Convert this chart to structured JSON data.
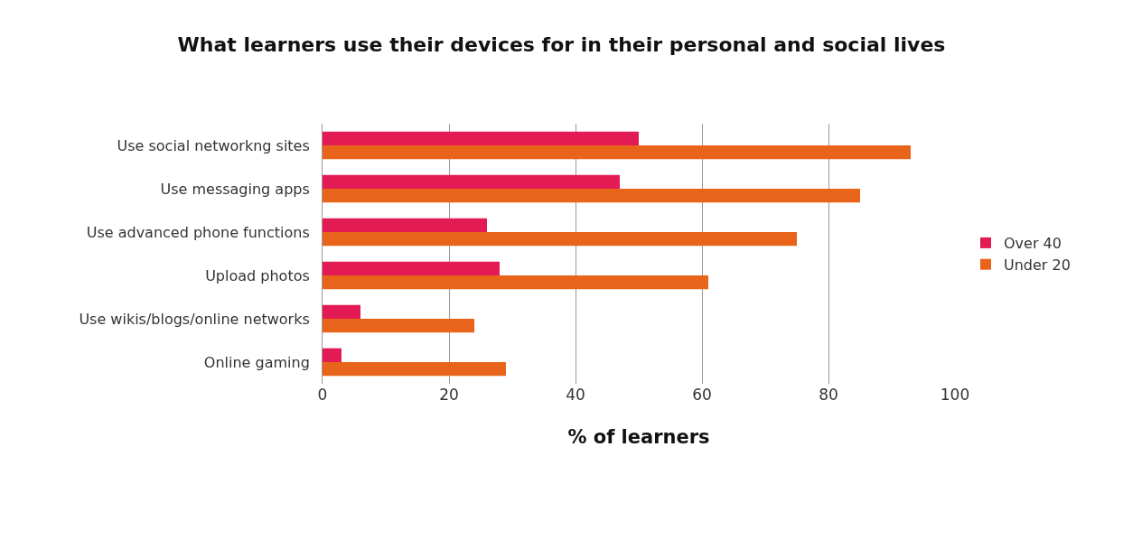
{
  "chart_data": {
    "type": "bar",
    "orientation": "horizontal",
    "title": "What learners use their devices for in their personal and social lives",
    "xlabel": "% of learners",
    "categories": [
      "Use social networkng sites",
      "Use messaging apps",
      "Use advanced phone functions",
      "Upload photos",
      "Use wikis/blogs/online networks",
      "Online gaming"
    ],
    "series": [
      {
        "name": "Over 40",
        "color": "#e31b54",
        "values": [
          50,
          47,
          26,
          28,
          6,
          3
        ]
      },
      {
        "name": "Under 20",
        "color": "#e8641b",
        "values": [
          93,
          85,
          75,
          61,
          24,
          29
        ]
      }
    ],
    "xlim": [
      0,
      100
    ],
    "xticks": [
      0,
      20,
      40,
      60,
      80,
      100
    ],
    "grid": "x",
    "legend": "right"
  }
}
